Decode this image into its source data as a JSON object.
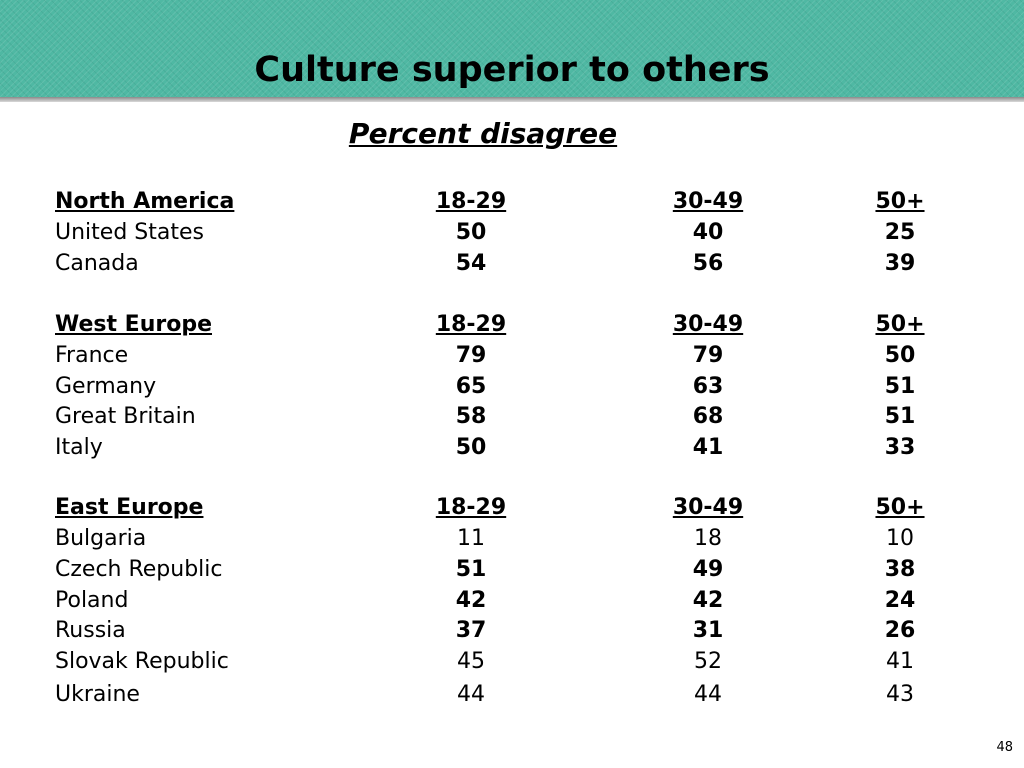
{
  "slide": {
    "title": "Culture superior to others",
    "subtitle": "Percent disagree",
    "page_number": "48"
  },
  "table": {
    "sections": [
      {
        "region": "North America",
        "columns": [
          "18-29",
          "30-49",
          "50+"
        ],
        "rows": [
          {
            "country": "United States",
            "values": [
              "50",
              "40",
              "25"
            ],
            "bold": true
          },
          {
            "country": "Canada",
            "values": [
              "54",
              "56",
              "39"
            ],
            "bold": true
          }
        ]
      },
      {
        "region": "West Europe",
        "columns": [
          "18-29",
          "30-49",
          "50+"
        ],
        "rows": [
          {
            "country": "France",
            "values": [
              "79",
              "79",
              "50"
            ],
            "bold": true
          },
          {
            "country": "Germany",
            "values": [
              "65",
              "63",
              "51"
            ],
            "bold": true
          },
          {
            "country": "Great Britain",
            "values": [
              "58",
              "68",
              "51"
            ],
            "bold": true
          },
          {
            "country": "Italy",
            "values": [
              "50",
              "41",
              "33"
            ],
            "bold": true
          }
        ]
      },
      {
        "region": "East Europe",
        "columns": [
          "18-29",
          "30-49",
          "50+"
        ],
        "rows": [
          {
            "country": "Bulgaria",
            "values": [
              "11",
              "18",
              "10"
            ],
            "bold": false
          },
          {
            "country": "Czech Republic",
            "values": [
              "51",
              "49",
              "38"
            ],
            "bold": true
          },
          {
            "country": "Poland",
            "values": [
              "42",
              "42",
              "24"
            ],
            "bold": true
          },
          {
            "country": "Russia",
            "values": [
              "37",
              "31",
              "26"
            ],
            "bold": true
          },
          {
            "country": "Slovak Republic",
            "values": [
              "45",
              "52",
              "41"
            ],
            "bold": false
          },
          {
            "country": "Ukraine",
            "values": [
              "44",
              "44",
              "43"
            ],
            "bold": false
          }
        ]
      }
    ]
  }
}
